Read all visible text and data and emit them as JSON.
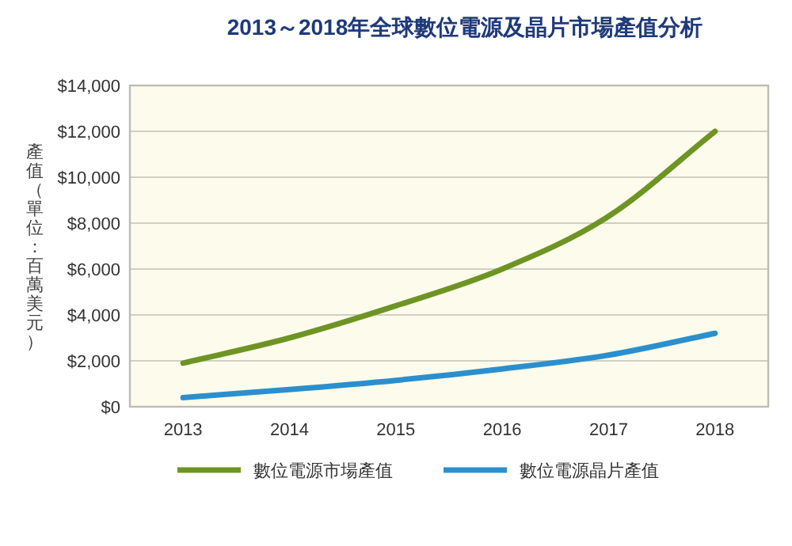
{
  "chart_data": {
    "type": "line",
    "title": "2013～2018年全球數位電源及晶片市場產值分析",
    "ylabel": "產值（單位：百萬美元）",
    "categories": [
      "2013",
      "2014",
      "2015",
      "2016",
      "2017",
      "2018"
    ],
    "series": [
      {
        "name": "數位電源市場產值",
        "color": "#6e9424",
        "values": [
          1900,
          3000,
          4400,
          6000,
          8300,
          12000
        ]
      },
      {
        "name": "數位電源晶片產值",
        "color": "#2c8fcd",
        "values": [
          400,
          750,
          1150,
          1650,
          2250,
          3200
        ]
      }
    ],
    "ylim": [
      0,
      14000
    ],
    "yticks": [
      {
        "value": 0,
        "label": "$0"
      },
      {
        "value": 2000,
        "label": "$2,000"
      },
      {
        "value": 4000,
        "label": "$4,000"
      },
      {
        "value": 6000,
        "label": "$6,000"
      },
      {
        "value": 8000,
        "label": "$8,000"
      },
      {
        "value": 10000,
        "label": "$10,000"
      },
      {
        "value": 12000,
        "label": "$12,000"
      },
      {
        "value": 14000,
        "label": "$14,000"
      }
    ],
    "grid": "y",
    "legend": "bottom",
    "marker": "none",
    "line_style": "solid"
  }
}
